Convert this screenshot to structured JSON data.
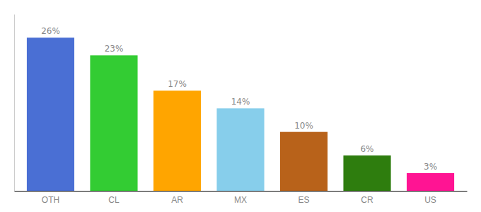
{
  "chart_data": {
    "type": "bar",
    "categories": [
      "OTH",
      "CL",
      "AR",
      "MX",
      "ES",
      "CR",
      "US"
    ],
    "values": [
      26,
      23,
      17,
      14,
      10,
      6,
      3
    ],
    "value_labels": [
      "26%",
      "23%",
      "17%",
      "14%",
      "10%",
      "6%",
      "3%"
    ],
    "colors": [
      "#4A6FD4",
      "#33CC33",
      "#FFA500",
      "#87CEEB",
      "#B8621A",
      "#2E7D0E",
      "#FF1493"
    ],
    "ylim": [
      0,
      30
    ],
    "data_labels": true,
    "tick_labels": "x"
  }
}
